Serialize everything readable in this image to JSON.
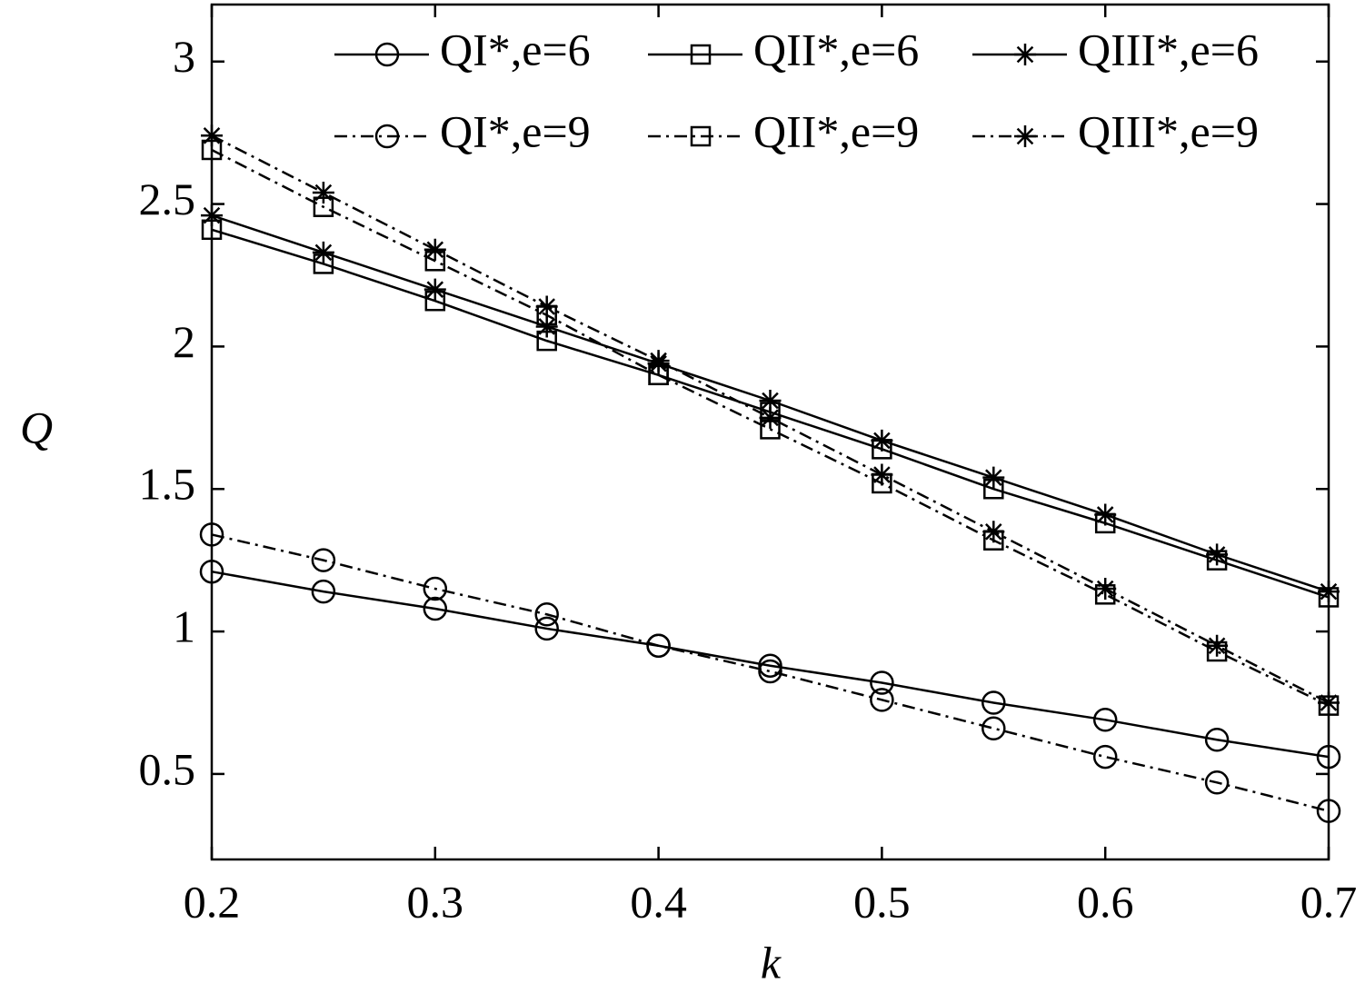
{
  "chart_data": {
    "type": "line",
    "x_label": "k",
    "y_label": "Q",
    "x": [
      0.2,
      0.25,
      0.3,
      0.35,
      0.4,
      0.45,
      0.5,
      0.55,
      0.6,
      0.65,
      0.7
    ],
    "xlim": [
      0.2,
      0.7
    ],
    "xticks": [
      0.2,
      0.3,
      0.4,
      0.5,
      0.6,
      0.7
    ],
    "ylim": [
      0.2,
      3.2
    ],
    "yticks": [
      0.5,
      1,
      1.5,
      2,
      2.5,
      3
    ],
    "series": [
      {
        "name": "QI*,e=6",
        "color": "#000000",
        "marker": "circle",
        "dash": "solid",
        "values": [
          1.21,
          1.14,
          1.08,
          1.01,
          0.95,
          0.88,
          0.82,
          0.75,
          0.69,
          0.62,
          0.56
        ]
      },
      {
        "name": "QII*,e=6",
        "color": "#000000",
        "marker": "square",
        "dash": "solid",
        "values": [
          2.41,
          2.29,
          2.16,
          2.02,
          1.9,
          1.77,
          1.64,
          1.5,
          1.38,
          1.25,
          1.12
        ]
      },
      {
        "name": "QIII*,e=6",
        "color": "#000000",
        "marker": "star",
        "dash": "solid",
        "values": [
          2.46,
          2.33,
          2.2,
          2.07,
          1.94,
          1.81,
          1.67,
          1.54,
          1.41,
          1.27,
          1.14
        ]
      },
      {
        "name": "QI*,e=9",
        "color": "#000000",
        "marker": "circle",
        "dash": "dashdot",
        "values": [
          1.34,
          1.25,
          1.15,
          1.06,
          0.95,
          0.86,
          0.76,
          0.66,
          0.56,
          0.47,
          0.37
        ]
      },
      {
        "name": "QII*,e=9",
        "color": "#000000",
        "marker": "square",
        "dash": "dashdot",
        "values": [
          2.69,
          2.49,
          2.3,
          2.11,
          1.9,
          1.71,
          1.52,
          1.32,
          1.13,
          0.93,
          0.74
        ]
      },
      {
        "name": "QIII*,e=9",
        "color": "#000000",
        "marker": "star",
        "dash": "dashdot",
        "values": [
          2.74,
          2.54,
          2.34,
          2.14,
          1.95,
          1.75,
          1.55,
          1.35,
          1.15,
          0.95,
          0.75
        ]
      }
    ]
  }
}
